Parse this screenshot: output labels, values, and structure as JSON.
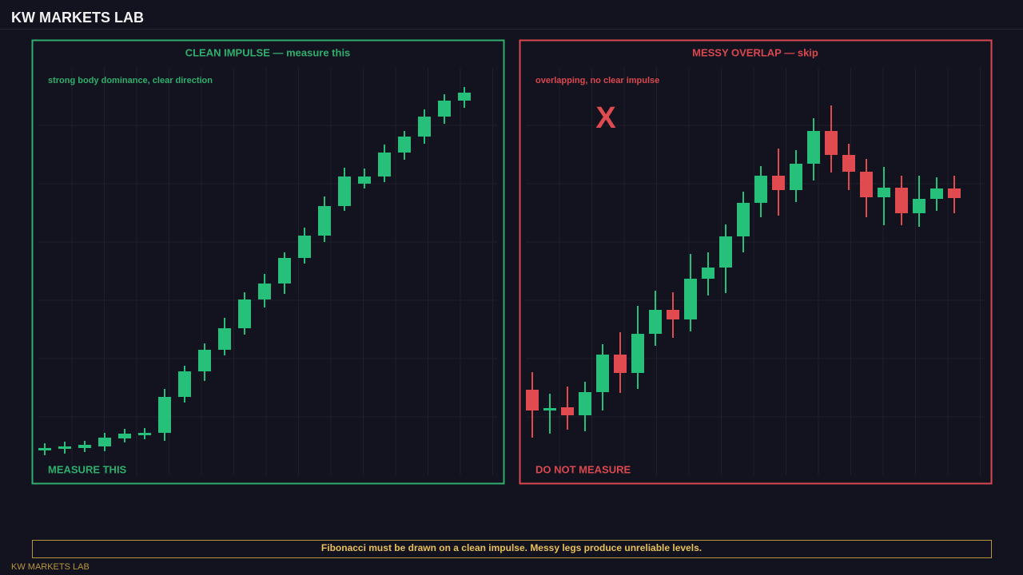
{
  "header": {
    "title": "KW MARKETS LAB"
  },
  "chart_data": [
    {
      "type": "candlestick",
      "title": "CLEAN IMPULSE — measure this",
      "subtitle": "strong body dominance, clear direction",
      "label": "MEASURE THIS",
      "accent": "#2fae6c",
      "up_color": "#27c07a",
      "down_color": "#e04b4f",
      "ylim": [
        0,
        102
      ],
      "grid": true,
      "open": [
        6.2,
        6.6,
        6.8,
        7.2,
        9.2,
        10.0,
        10.6,
        19.6,
        26.0,
        31.4,
        36.8,
        44.0,
        48.0,
        54.4,
        60.0,
        67.4,
        73.0,
        74.8,
        80.8,
        84.8,
        89.8,
        93.8
      ],
      "high": [
        8.0,
        8.4,
        8.6,
        10.6,
        11.6,
        11.8,
        21.6,
        27.4,
        33.0,
        39.4,
        45.8,
        50.4,
        55.8,
        62.0,
        69.8,
        77.0,
        76.8,
        82.8,
        86.2,
        91.6,
        95.4,
        97.2
      ],
      "low": [
        5.0,
        5.4,
        5.8,
        6.0,
        8.2,
        9.0,
        8.6,
        18.2,
        23.6,
        30.0,
        35.2,
        42.0,
        45.4,
        53.0,
        58.4,
        66.2,
        71.8,
        73.4,
        79.0,
        83.0,
        88.0,
        92.0
      ],
      "close": [
        6.8,
        7.2,
        7.6,
        9.4,
        10.4,
        10.6,
        19.6,
        26.0,
        31.4,
        36.8,
        44.0,
        48.0,
        54.4,
        60.0,
        67.4,
        74.8,
        74.8,
        80.8,
        84.8,
        89.8,
        93.8,
        95.8
      ]
    },
    {
      "type": "candlestick",
      "title": "MESSY OVERLAP — skip",
      "subtitle": "overlapping, no clear impulse",
      "label": "DO NOT MEASURE",
      "mark_text": "X",
      "accent": "#d9474f",
      "up_color": "#27c07a",
      "down_color": "#e04b4f",
      "ylim": [
        0,
        102
      ],
      "grid": true,
      "open": [
        21.4,
        16.2,
        17.0,
        15.0,
        20.8,
        30.2,
        25.6,
        35.4,
        41.4,
        39.0,
        49.2,
        52.0,
        59.8,
        68.2,
        75.0,
        71.4,
        78.0,
        86.2,
        80.2,
        76.0,
        69.6,
        72.0,
        65.6,
        69.2,
        71.8
      ],
      "high": [
        25.8,
        20.4,
        22.2,
        23.4,
        32.8,
        35.8,
        42.4,
        46.2,
        45.8,
        55.4,
        55.8,
        62.8,
        71.0,
        77.4,
        81.8,
        81.4,
        89.4,
        92.6,
        83.0,
        79.2,
        77.2,
        75.0,
        75.0,
        74.6,
        75.0
      ],
      "low": [
        9.4,
        10.4,
        11.4,
        11.0,
        16.2,
        20.6,
        21.6,
        32.4,
        34.4,
        36.0,
        45.0,
        45.6,
        55.8,
        64.6,
        65.0,
        68.4,
        73.8,
        75.8,
        71.4,
        64.6,
        62.6,
        62.6,
        62.2,
        66.2,
        65.6
      ],
      "close": [
        16.2,
        16.8,
        15.0,
        20.8,
        30.2,
        25.6,
        35.4,
        41.4,
        39.0,
        49.2,
        52.0,
        59.8,
        68.2,
        75.0,
        71.4,
        78.0,
        86.2,
        80.2,
        76.0,
        69.6,
        72.0,
        65.6,
        69.2,
        71.8,
        69.4
      ]
    }
  ],
  "footer": {
    "note": "Fibonacci must be drawn on a clean impulse. Messy legs produce unreliable levels.",
    "brand": "KW MARKETS LAB"
  }
}
